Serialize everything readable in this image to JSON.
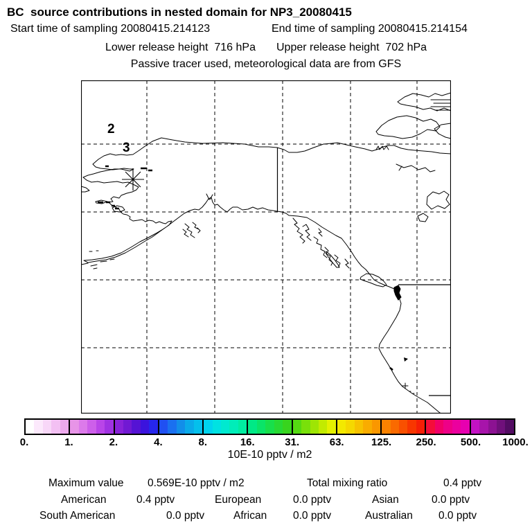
{
  "header": {
    "title": "BC  source contributions in nested domain for NP3_20080415",
    "start_time": "Start time of sampling 20080415.214123",
    "end_time": "End time of sampling 20080415.214154",
    "lower_release": "Lower release height  716 hPa",
    "upper_release": "Upper release height  702 hPa",
    "tracer_note": "Passive tracer used, meteorological data are from GFS"
  },
  "map": {
    "waypoint_labels": [
      {
        "text": "2"
      },
      {
        "text": "3"
      }
    ],
    "release_marker": "asterisk"
  },
  "colorbar": {
    "levels": [
      "0.",
      "1.",
      "2.",
      "4.",
      "8.",
      "16.",
      "31.",
      "63.",
      "125.",
      "250.",
      "500.",
      "1000."
    ],
    "unit": "10E-10 pptv / m2",
    "segments": [
      [
        "#ffffff",
        "#fce9fc",
        "#f8d7f8",
        "#f3c0f3",
        "#eda9ed"
      ],
      [
        "#e794e7",
        "#dc7aea",
        "#cd5fea",
        "#b945e8",
        "#a032e2"
      ],
      [
        "#8822d8",
        "#7119d3",
        "#5513d4",
        "#3b13dd",
        "#2626ec"
      ],
      [
        "#2050f2",
        "#1a70f0",
        "#128ee9",
        "#0aaae9",
        "#04c0ec"
      ],
      [
        "#00d4ee",
        "#00e2e2",
        "#00e9d0",
        "#00edb9",
        "#00eda0"
      ],
      [
        "#00e986",
        "#0ae468",
        "#18df4b",
        "#28d933",
        "#38d41e"
      ],
      [
        "#55da12",
        "#79e00a",
        "#9ee504",
        "#c2eb00",
        "#e4f100"
      ],
      [
        "#f3e900",
        "#f5d800",
        "#f7c200",
        "#f9ac00",
        "#fa9700"
      ],
      [
        "#fa8200",
        "#fa6a00",
        "#f95000",
        "#f83600",
        "#f61e06"
      ],
      [
        "#f40d3a",
        "#f10068",
        "#ee0087",
        "#eb009e",
        "#e700b0"
      ],
      [
        "#c312c3",
        "#a714aa",
        "#8c1292",
        "#70107b",
        "#530c63"
      ]
    ]
  },
  "stats": {
    "max_label": "Maximum value",
    "max_value": "0.569E-10 pptv / m2",
    "tmr_label": "Total mixing ratio",
    "tmr_value": "0.4 pptv",
    "regions": [
      {
        "label": "American",
        "value": "0.4 pptv"
      },
      {
        "label": "European",
        "value": "0.0 pptv"
      },
      {
        "label": "Asian",
        "value": "0.0 pptv"
      },
      {
        "label": "South American",
        "value": "0.0 pptv"
      },
      {
        "label": "African",
        "value": "0.0 pptv"
      },
      {
        "label": "Australian",
        "value": "0.0 pptv"
      }
    ]
  }
}
